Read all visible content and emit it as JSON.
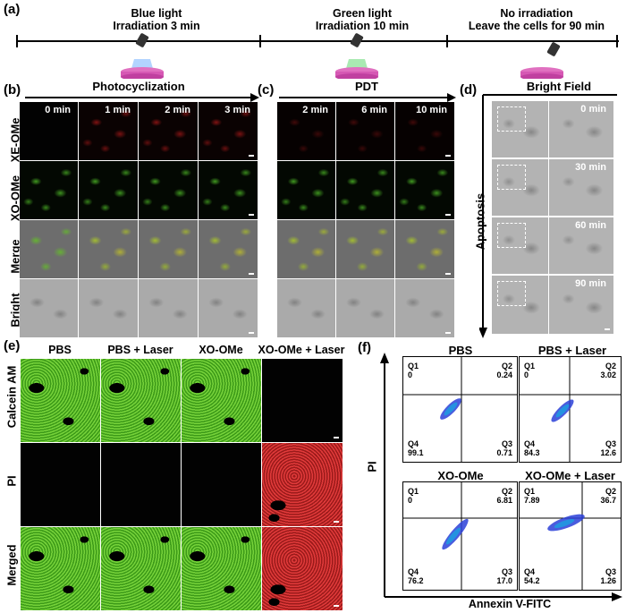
{
  "panels": {
    "a": "(a)",
    "b": "(b)",
    "c": "(c)",
    "d": "(d)",
    "e": "(e)",
    "f": "(f)"
  },
  "timeline": {
    "step1": {
      "line1": "Blue light",
      "line2": "Irradiation 3 min",
      "color": "#7fb8ff"
    },
    "step2": {
      "line1": "Green light",
      "line2": "Irradiation 10 min",
      "color": "#6fdc7f"
    },
    "step3": {
      "line1": "No irradiation",
      "line2": "Leave the cells for 90 min"
    }
  },
  "b": {
    "title": "Photocyclization",
    "times": [
      "0 min",
      "1 min",
      "2 min",
      "3 min"
    ],
    "rows": [
      "XE-OMe",
      "XO-OMe",
      "Merge",
      "Bright"
    ]
  },
  "c": {
    "title": "PDT",
    "times": [
      "2 min",
      "6 min",
      "10 min"
    ]
  },
  "d": {
    "title": "Bright Field",
    "times": [
      "0 min",
      "30 min",
      "60 min",
      "90 min"
    ],
    "side": "Apoptosis"
  },
  "e": {
    "cols": [
      "PBS",
      "PBS + Laser",
      "XO-OMe",
      "XO-OMe + Laser"
    ],
    "rows": [
      "Calcein AM",
      "PI",
      "Merged"
    ]
  },
  "f": {
    "ylabel": "PI",
    "xlabel": "Annexin V-FITC",
    "plots": [
      {
        "title": "PBS",
        "q1": "Q1",
        "q1v": "0",
        "q2": "Q2",
        "q2v": "0.24",
        "q3": "Q3",
        "q3v": "0.71",
        "q4": "Q4",
        "q4v": "99.1"
      },
      {
        "title": "PBS + Laser",
        "q1": "Q1",
        "q1v": "0",
        "q2": "Q2",
        "q2v": "3.02",
        "q3": "Q3",
        "q3v": "12.6",
        "q4": "Q4",
        "q4v": "84.3"
      },
      {
        "title": "XO-OMe",
        "q1": "Q1",
        "q1v": "0",
        "q2": "Q2",
        "q2v": "6.81",
        "q3": "Q3",
        "q3v": "17.0",
        "q4": "Q4",
        "q4v": "76.2"
      },
      {
        "title": "XO-OMe + Laser",
        "q1": "Q1",
        "q1v": "7.89",
        "q2": "Q2",
        "q2v": "36.7",
        "q3": "Q3",
        "q3v": "1.26",
        "q4": "Q4",
        "q4v": "54.2"
      }
    ]
  }
}
